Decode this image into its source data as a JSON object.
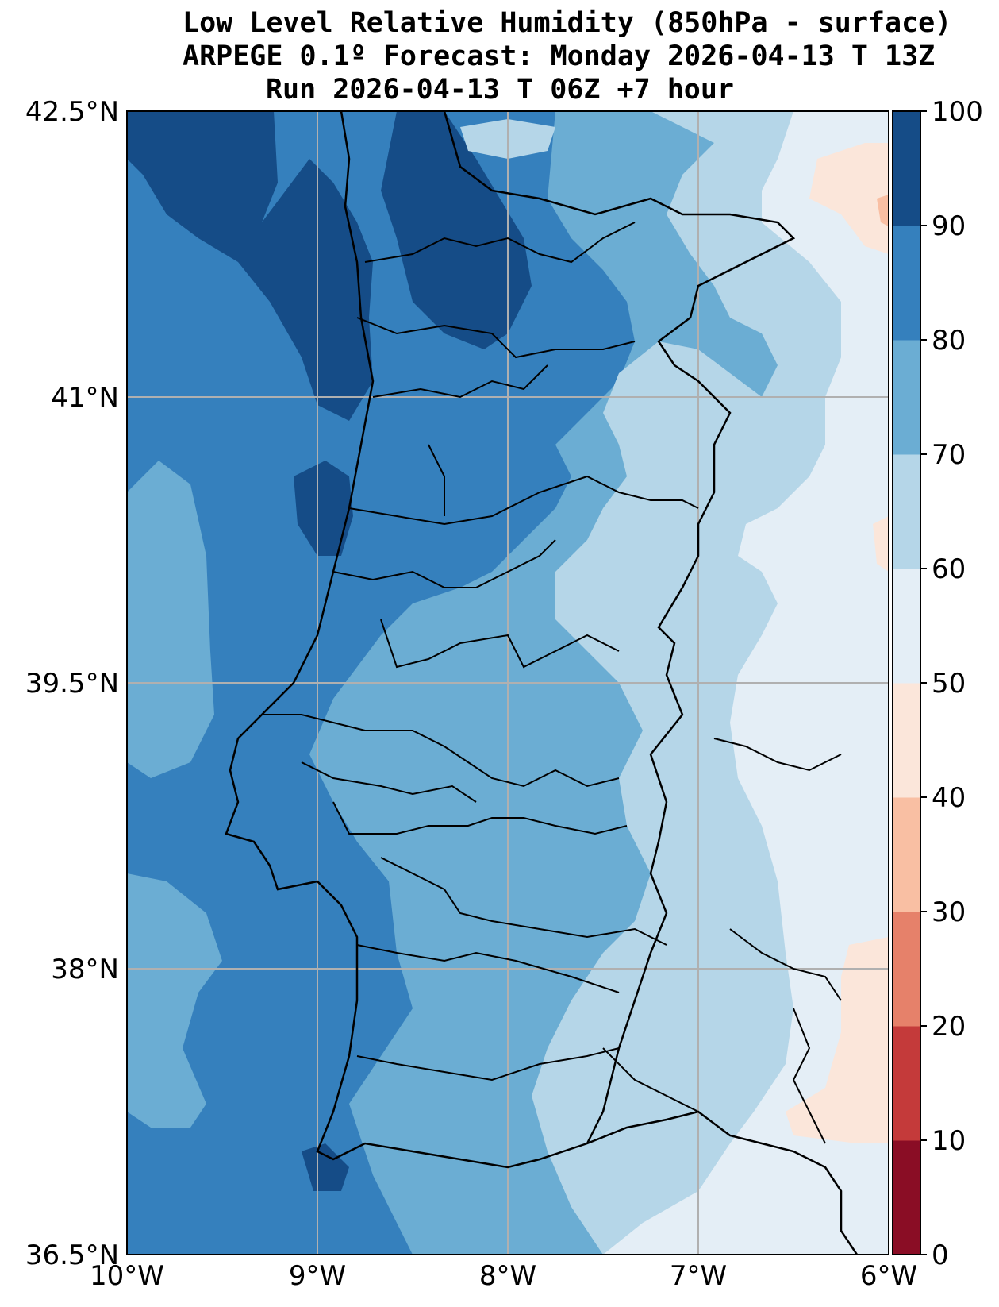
{
  "title": {
    "line1": "Low Level Relative Humidity (850hPa - surface)",
    "line2": "ARPEGE 0.1º Forecast: Monday 2026-04-13 T 13Z",
    "line3": "Run 2026-04-13 T 06Z +7 hour"
  },
  "map": {
    "lon_range": [
      -10,
      -6
    ],
    "lat_range": [
      36.5,
      42.5
    ],
    "lon_ticks": [
      -10,
      -9,
      -8,
      -7,
      -6
    ],
    "lat_ticks": [
      36.5,
      38,
      39.5,
      41,
      42.5
    ],
    "lon_tick_labels": [
      "10°W",
      "9°W",
      "8°W",
      "7°W",
      "6°W"
    ],
    "lat_tick_labels": [
      "36.5°N",
      "38°N",
      "39.5°N",
      "41°N",
      "42.5°N"
    ],
    "gridlines": true
  },
  "colorbar": {
    "levels": [
      0,
      10,
      20,
      30,
      40,
      50,
      60,
      70,
      80,
      90,
      100
    ],
    "labels": [
      "0",
      "10",
      "20",
      "30",
      "40",
      "50",
      "60",
      "70",
      "80",
      "90",
      "100"
    ],
    "colors": [
      "#8a0d25",
      "#c43a3a",
      "#e6816a",
      "#f9bfa3",
      "#fbe6da",
      "#e4eef6",
      "#b5d6e8",
      "#6badd3",
      "#3580bd",
      "#154c87"
    ]
  }
}
